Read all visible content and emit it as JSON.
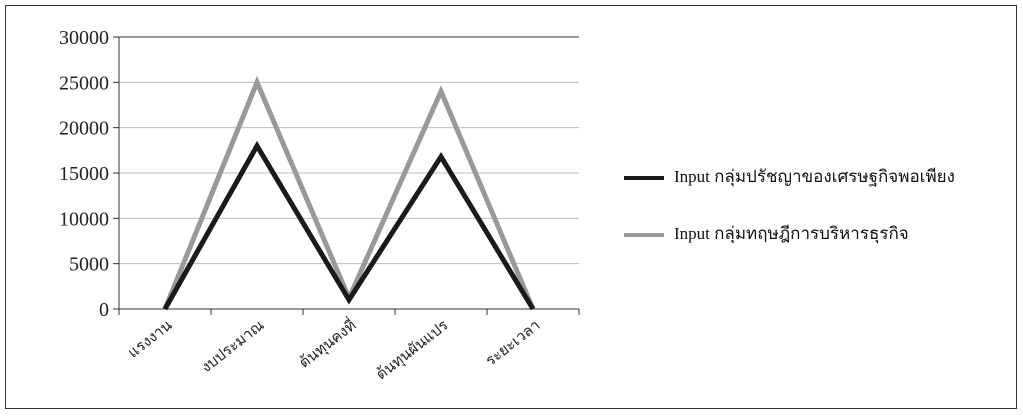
{
  "chart_data": {
    "type": "line",
    "categories": [
      "แรงงาน",
      "งบประมาณ",
      "ต้นทุนคงที่",
      "ต้นทุนผันแปร",
      "ระยะเวลา"
    ],
    "series": [
      {
        "name": "Input กลุ่มปรัชญาของเศรษฐกิจพอเพียง",
        "color": "#1a1a1a",
        "values": [
          0,
          18000,
          1000,
          16800,
          0
        ]
      },
      {
        "name": "Input กลุ่มทฤษฎีการบริหารธุรกิจ",
        "color": "#999999",
        "values": [
          0,
          25000,
          1200,
          24000,
          0
        ]
      }
    ],
    "yticks": [
      "0",
      "5000",
      "10000",
      "15000",
      "20000",
      "25000",
      "30000"
    ],
    "ylim": [
      0,
      30000
    ],
    "grid": true,
    "legend_position": "right"
  }
}
